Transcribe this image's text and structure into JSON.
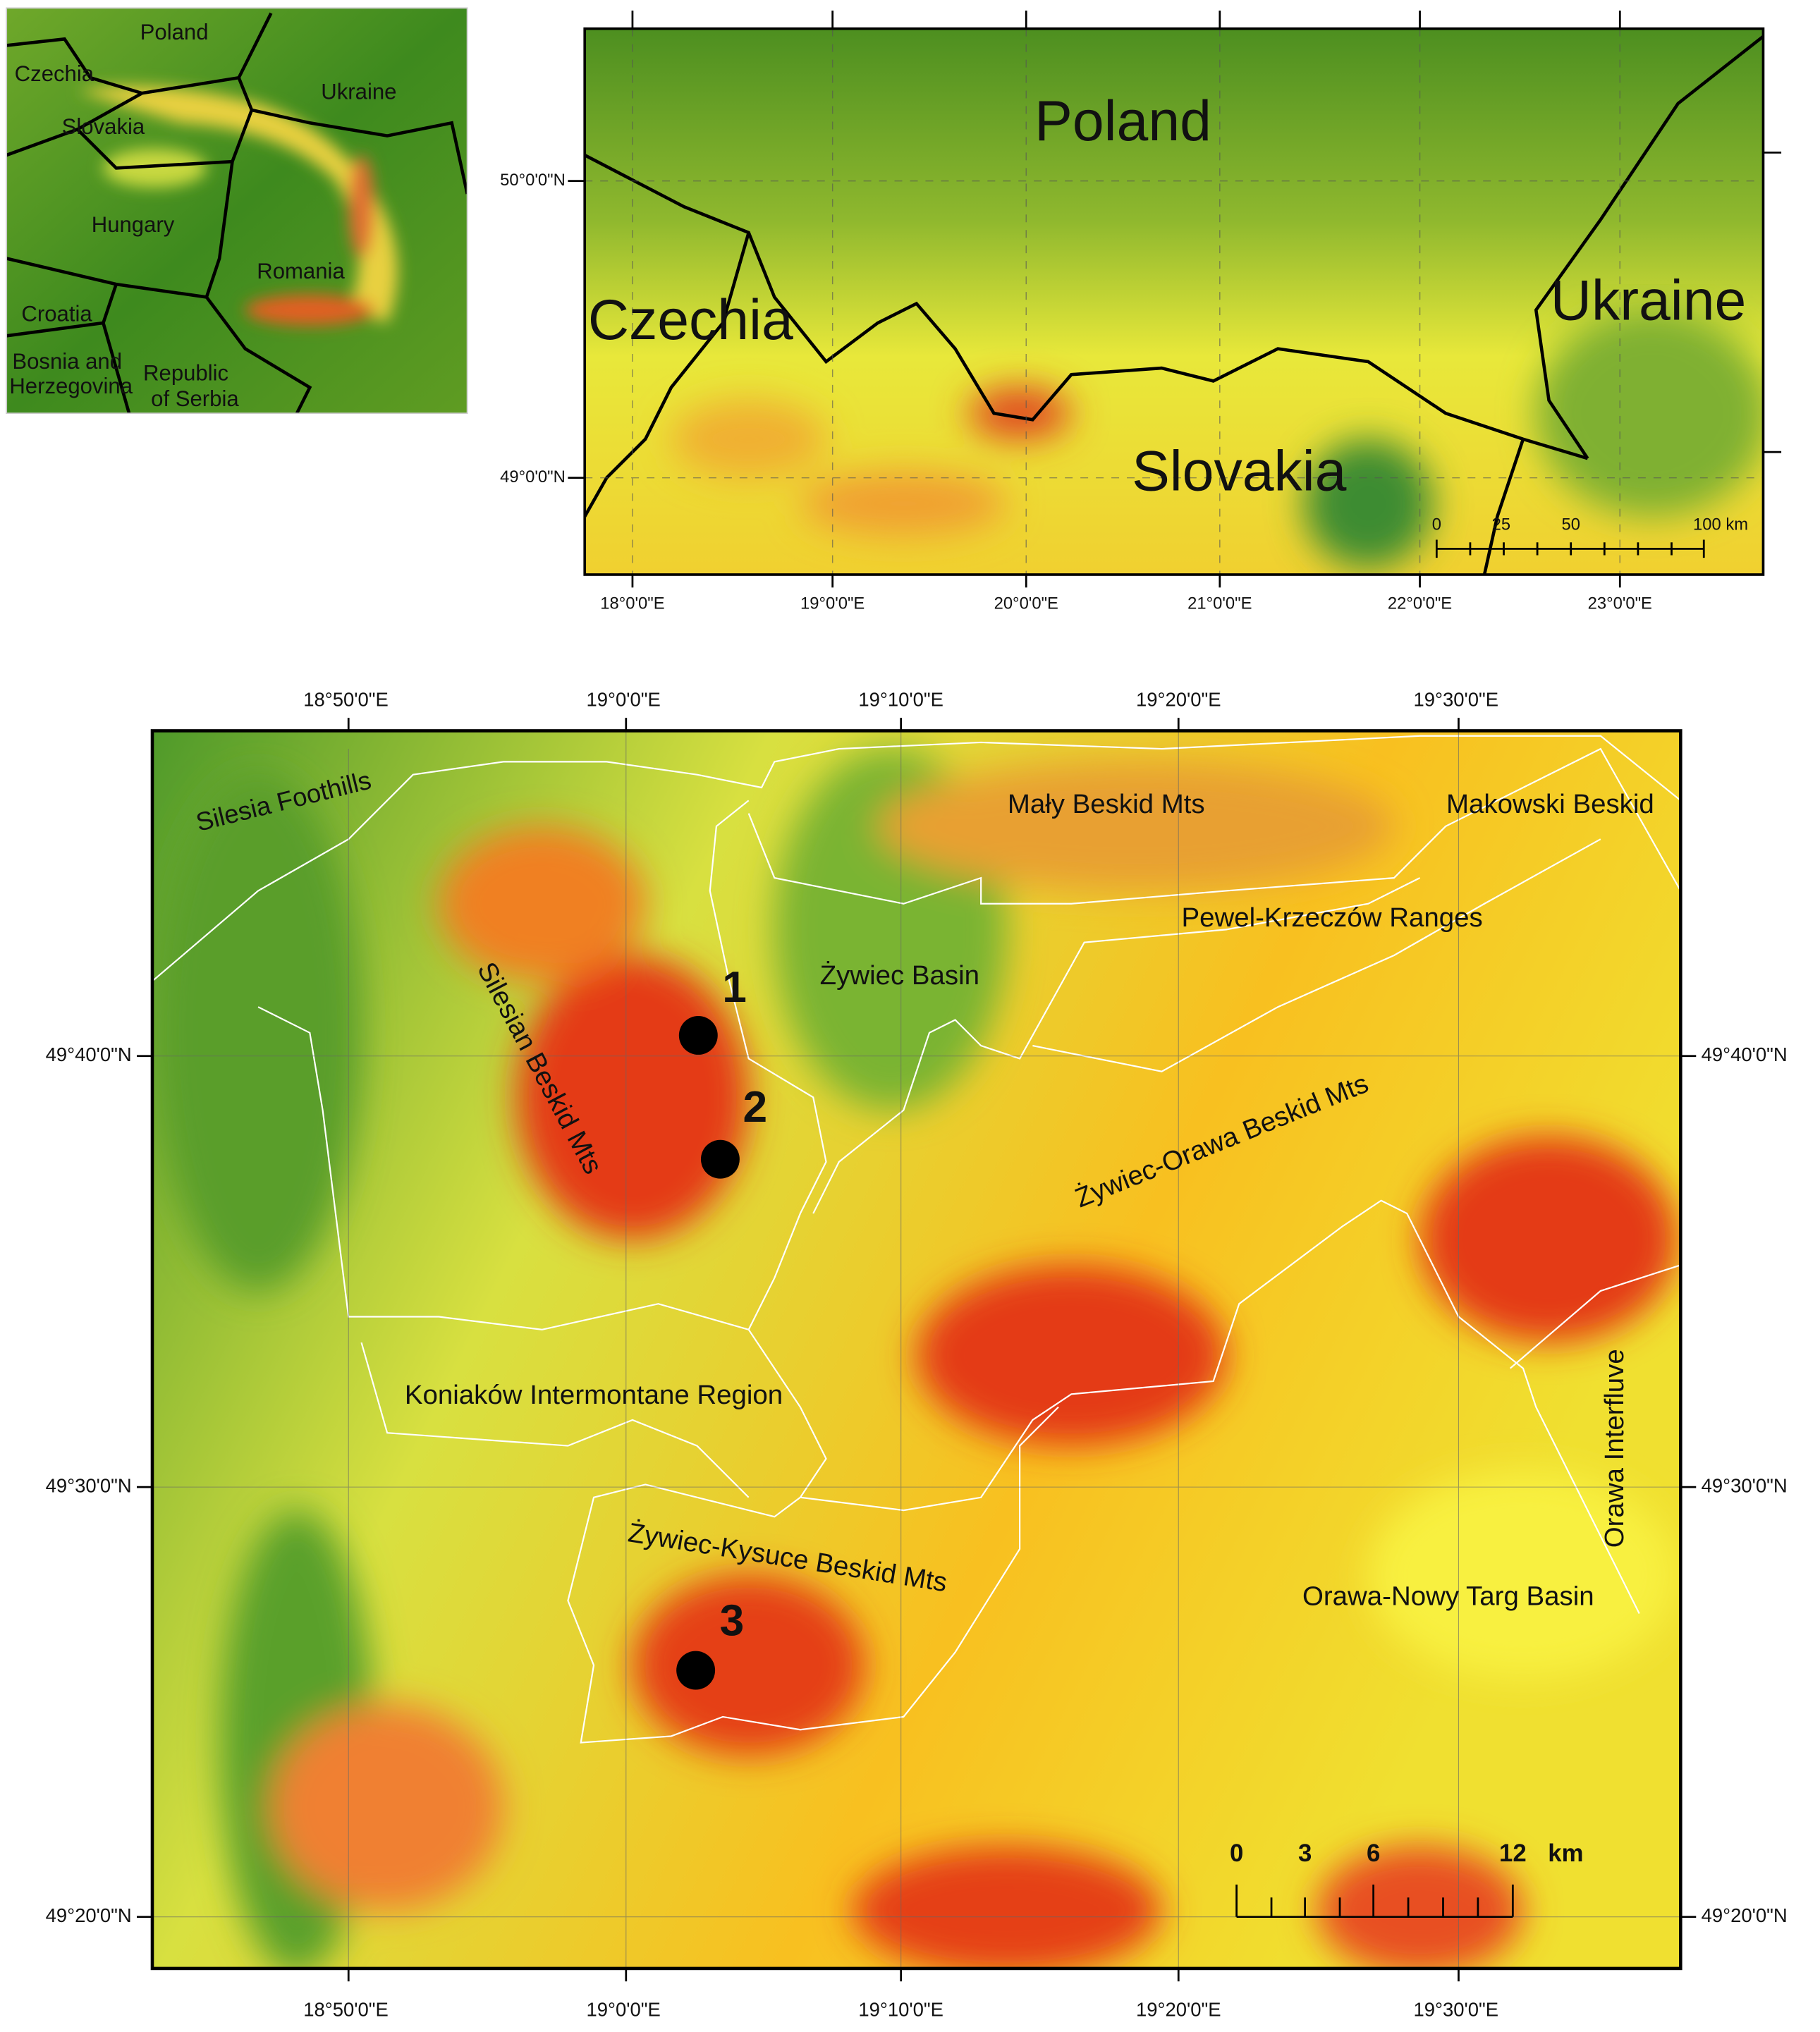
{
  "inset": {
    "labels": [
      "Poland",
      "Czechia",
      "Slovakia",
      "Ukraine",
      "Hungary",
      "Romania",
      "Croatia",
      "Bosnia and",
      "Herzegovina",
      "Republic",
      "of Serbia"
    ]
  },
  "overview": {
    "labels": [
      "Poland",
      "Czechia",
      "Ukraine",
      "Slovakia"
    ],
    "lat_labels": [
      "50°0'0\"N",
      "49°0'0\"N"
    ],
    "lon_labels": [
      "18°0'0\"E",
      "19°0'0\"E",
      "20°0'0\"E",
      "21°0'0\"E",
      "22°0'0\"E",
      "23°0'0\"E"
    ],
    "scale": [
      "0",
      "25",
      "50",
      "100 km"
    ]
  },
  "main": {
    "regions": [
      "Silesia Foothills",
      "Mały Beskid Mts",
      "Makowski Beskid",
      "Pewel-Krzeczów Ranges",
      "Żywiec Basin",
      "Silesian Beskid Mts",
      "Żywiec-Orawa Beskid Mts",
      "Koniaków Intermontane Region",
      "Żywiec-Kysuce Beskid Mts",
      "Orawa Interfluve",
      "Orawa-Nowy Targ Basin"
    ],
    "sites": [
      "1",
      "2",
      "3"
    ],
    "lat_labels": [
      "49°40'0\"N",
      "49°30'0\"N",
      "49°20'0\"N"
    ],
    "lon_labels": [
      "18°50'0\"E",
      "19°0'0\"E",
      "19°10'0\"E",
      "19°20'0\"E",
      "19°30'0\"E"
    ],
    "scale": [
      "0",
      "3",
      "6",
      "12",
      "km"
    ]
  }
}
